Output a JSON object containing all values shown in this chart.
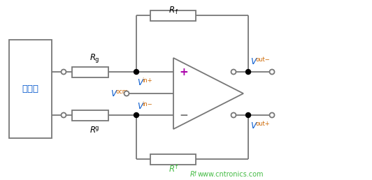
{
  "bg_color": "#ffffff",
  "line_color": "#777777",
  "line_width": 1.3,
  "dot_color": "#000000",
  "signal_source_label": "信号源",
  "signal_source_color": "#0055cc",
  "Rg_label": "Rg",
  "Rf_top_label": "Rf",
  "Rf_bot_label": "Rf",
  "plus_color": "#aa00aa",
  "watermark": "www.cntronics.com",
  "watermark_color": "#44bb44",
  "Rf_label_color": "#44bb44",
  "label_color_blue": "#0055cc",
  "label_color_orange": "#cc6600"
}
